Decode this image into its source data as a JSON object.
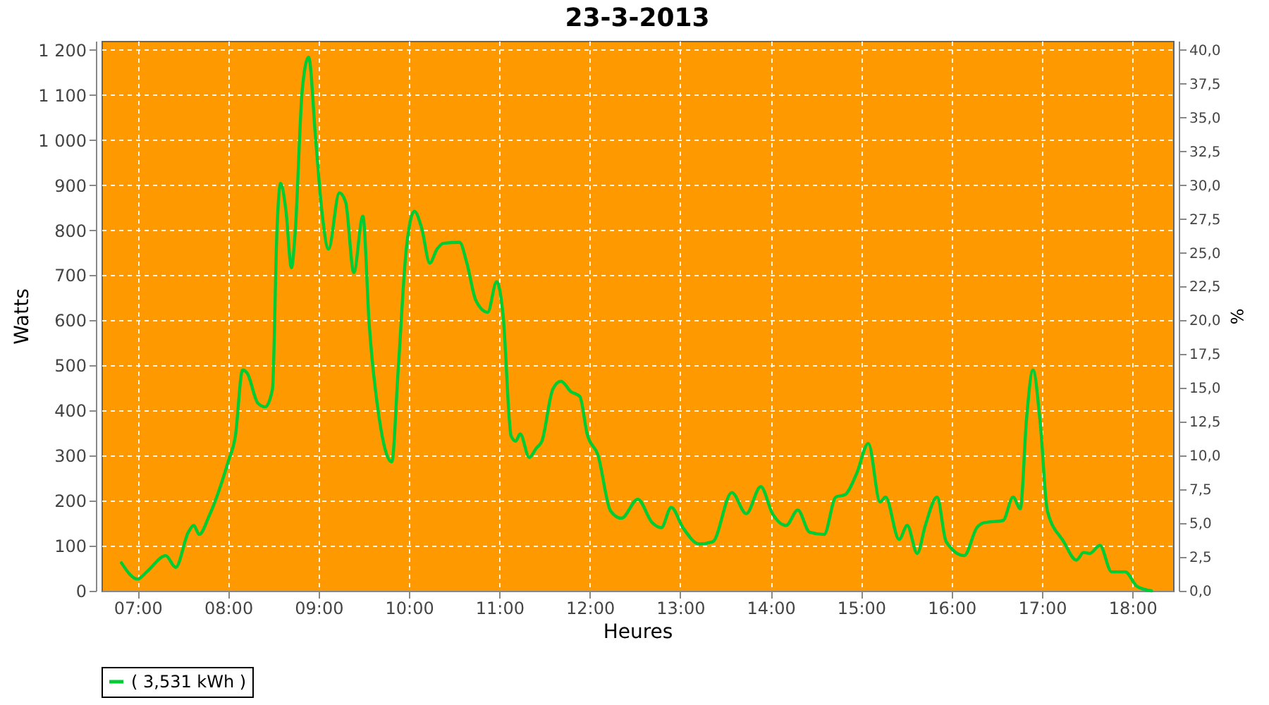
{
  "chart_data": {
    "type": "line",
    "title": "23-3-2013",
    "xlabel": "Heures",
    "ylabel": "Watts",
    "y2label": "%",
    "xlim": [
      6.6,
      18.45
    ],
    "xticks": [
      {
        "value": 7,
        "label": "07:00"
      },
      {
        "value": 8,
        "label": "08:00"
      },
      {
        "value": 9,
        "label": "09:00"
      },
      {
        "value": 10,
        "label": "10:00"
      },
      {
        "value": 11,
        "label": "11:00"
      },
      {
        "value": 12,
        "label": "12:00"
      },
      {
        "value": 13,
        "label": "13:00"
      },
      {
        "value": 14,
        "label": "14:00"
      },
      {
        "value": 15,
        "label": "15:00"
      },
      {
        "value": 16,
        "label": "16:00"
      },
      {
        "value": 17,
        "label": "17:00"
      },
      {
        "value": 18,
        "label": "18:00"
      }
    ],
    "ylim": [
      0,
      1220
    ],
    "yticks": [
      0,
      100,
      200,
      300,
      400,
      500,
      600,
      700,
      800,
      900,
      {
        "value": 1000,
        "label": "1 000"
      },
      {
        "value": 1100,
        "label": "1 100"
      },
      {
        "value": 1200,
        "label": "1 200"
      }
    ],
    "y2lim": [
      0,
      40.67
    ],
    "y2ticks": [
      {
        "value": 0,
        "label": "0,0"
      },
      {
        "value": 2.5,
        "label": "2,5"
      },
      {
        "value": 5,
        "label": "5,0"
      },
      {
        "value": 7.5,
        "label": "7,5"
      },
      {
        "value": 10,
        "label": "10,0"
      },
      {
        "value": 12.5,
        "label": "12,5"
      },
      {
        "value": 15,
        "label": "15,0"
      },
      {
        "value": 17.5,
        "label": "17,5"
      },
      {
        "value": 20,
        "label": "20,0"
      },
      {
        "value": 22.5,
        "label": "22,5"
      },
      {
        "value": 25,
        "label": "25,0"
      },
      {
        "value": 27.5,
        "label": "27,5"
      },
      {
        "value": 30,
        "label": "30,0"
      },
      {
        "value": 32.5,
        "label": "32,5"
      },
      {
        "value": 35,
        "label": "35,0"
      },
      {
        "value": 37.5,
        "label": "37,5"
      },
      {
        "value": 40,
        "label": "40,0"
      }
    ],
    "grid": true,
    "legend": "bottom",
    "marker": "none",
    "line_style": "solid",
    "series": [
      {
        "name": "( 3,531 kWh )",
        "color": "#00cc33",
        "x": [
          6.82,
          7.0,
          7.1,
          7.31,
          7.42,
          7.56,
          7.62,
          7.68,
          7.79,
          8.0,
          8.08,
          8.16,
          8.21,
          8.33,
          8.41,
          8.49,
          8.54,
          8.58,
          8.64,
          8.7,
          8.74,
          8.82,
          8.89,
          8.97,
          9.04,
          9.11,
          9.23,
          9.3,
          9.39,
          9.49,
          9.56,
          9.67,
          9.81,
          9.88,
          9.97,
          10.06,
          10.14,
          10.23,
          10.31,
          10.38,
          10.56,
          10.64,
          10.74,
          10.87,
          10.97,
          11.04,
          11.13,
          11.18,
          11.23,
          11.33,
          11.41,
          11.47,
          11.59,
          11.68,
          11.79,
          11.89,
          11.97,
          12.09,
          12.23,
          12.35,
          12.53,
          12.69,
          12.79,
          12.9,
          13.03,
          13.21,
          13.36,
          13.57,
          13.73,
          13.89,
          14.02,
          14.17,
          14.3,
          14.43,
          14.59,
          14.72,
          14.82,
          14.95,
          15.08,
          15.21,
          15.27,
          15.42,
          15.51,
          15.62,
          15.71,
          15.84,
          15.94,
          16.14,
          16.28,
          16.36,
          16.57,
          16.68,
          16.76,
          16.83,
          16.9,
          16.98,
          17.06,
          17.24,
          17.38,
          17.46,
          17.53,
          17.64,
          17.77,
          17.92,
          18.05,
          18.21
        ],
        "values": [
          62,
          26,
          42,
          78,
          52,
          130,
          145,
          125,
          166,
          286,
          343,
          490,
          483,
          416,
          408,
          447,
          800,
          904,
          842,
          717,
          790,
          1112,
          1184,
          997,
          836,
          758,
          883,
          862,
          706,
          831,
          592,
          384,
          286,
          488,
          758,
          842,
          805,
          727,
          758,
          771,
          773,
          727,
          644,
          618,
          686,
          613,
          343,
          332,
          348,
          296,
          317,
          332,
          447,
          465,
          442,
          431,
          348,
          301,
          177,
          161,
          203,
          151,
          140,
          185,
          140,
          104,
          109,
          218,
          171,
          231,
          171,
          145,
          179,
          130,
          125,
          208,
          213,
          260,
          327,
          197,
          208,
          114,
          145,
          83,
          145,
          208,
          109,
          78,
          140,
          151,
          156,
          208,
          182,
          384,
          490,
          374,
          177,
          109,
          68,
          85,
          83,
          101,
          42,
          42,
          10,
          0
        ]
      }
    ]
  }
}
